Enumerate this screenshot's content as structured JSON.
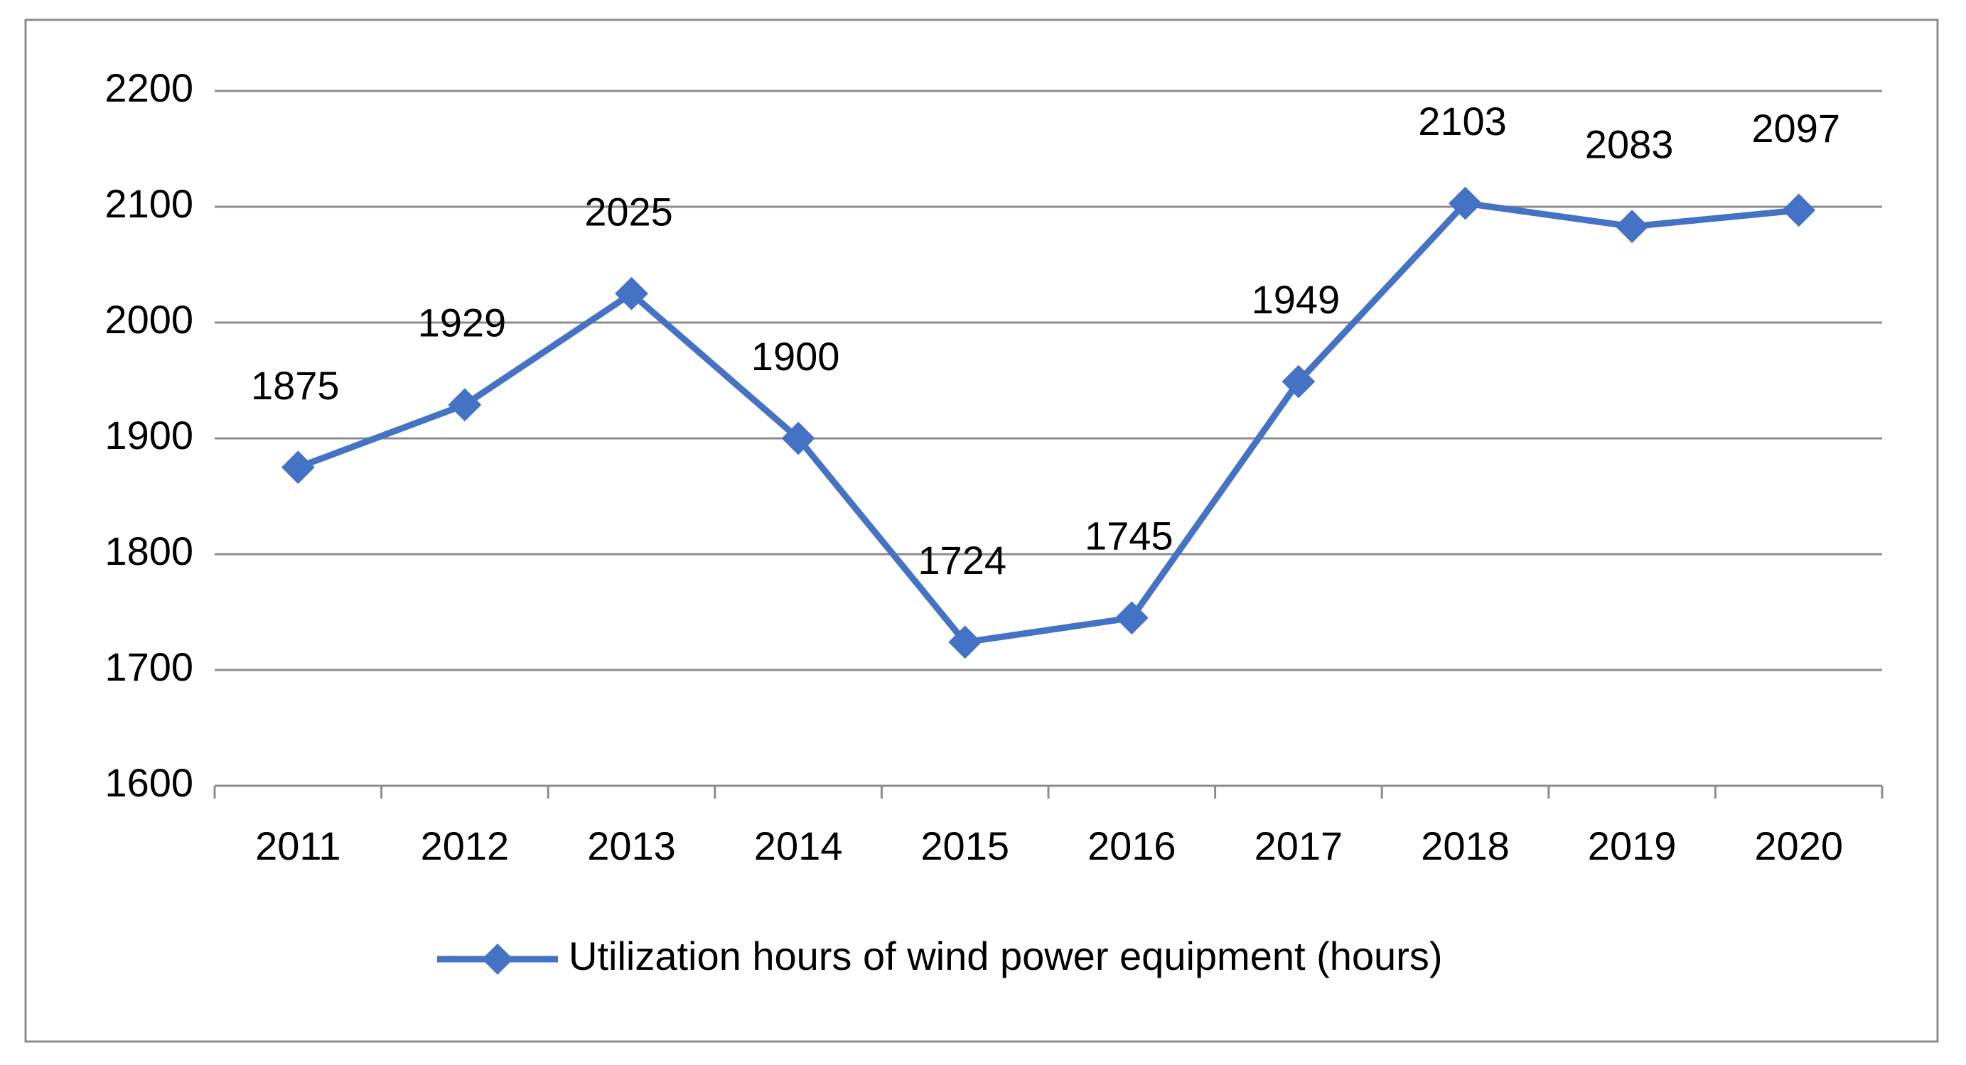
{
  "chart_data": {
    "type": "line",
    "categories": [
      "2011",
      "2012",
      "2013",
      "2014",
      "2015",
      "2016",
      "2017",
      "2018",
      "2019",
      "2020"
    ],
    "series": [
      {
        "name": "Utilization hours of wind power equipment (hours)",
        "values": [
          1875,
          1929,
          2025,
          1900,
          1724,
          1745,
          1949,
          2103,
          2083,
          2097
        ],
        "color": "#4472C4",
        "marker": "diamond"
      }
    ],
    "data_labels": [
      "1875",
      "1929",
      "2025",
      "1900",
      "1724",
      "1745",
      "1949",
      "2103",
      "2083",
      "2097"
    ],
    "yticks": [
      "1600",
      "1700",
      "1800",
      "1900",
      "2000",
      "2100",
      "2200"
    ],
    "ylim": [
      1600,
      2200
    ],
    "title": "",
    "xlabel": "",
    "ylabel": "",
    "grid": true,
    "legend_position": "bottom",
    "colors": {
      "series": "#4472C4",
      "grid": "#8c8c8c",
      "frame": "#8c8c8c"
    }
  }
}
